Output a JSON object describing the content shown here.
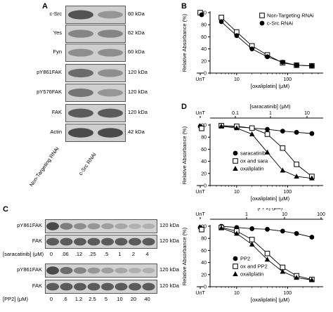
{
  "panels": {
    "A": "A",
    "B": "B",
    "C": "C",
    "D": "D"
  },
  "panelA": {
    "rows": [
      {
        "protein": "c-Src",
        "size": "60 kDa"
      },
      {
        "protein": "Yes",
        "size": "62 kDa"
      },
      {
        "protein": "Fyn",
        "size": "60 kDa"
      },
      {
        "protein": "pY861FAK",
        "size": "120 kDa"
      },
      {
        "protein": "pY576FAK",
        "size": "120 kDa"
      },
      {
        "protein": "FAK",
        "size": "120 kDa"
      },
      {
        "protein": "Actin",
        "size": "42 kDa"
      }
    ],
    "lanes": [
      "Non-Targeting RNAi",
      "c-Src RNAi"
    ]
  },
  "panelC": {
    "group1": {
      "rows": [
        {
          "protein": "pY861FAK",
          "size": "120 kDa"
        },
        {
          "protein": "FAK",
          "size": "120 kDa"
        }
      ],
      "dose_label": "[saracatinib] (μM)",
      "doses": [
        "0",
        ".06",
        ".12",
        ".25",
        ".5",
        "1",
        "2",
        "4"
      ]
    },
    "group2": {
      "rows": [
        {
          "protein": "pY861FAK",
          "size": "120 kDa"
        },
        {
          "protein": "FAK",
          "size": "120 kDa"
        }
      ],
      "dose_label": "[PP2] (μM)",
      "doses": [
        "0",
        ".6",
        "1.2",
        "2.5",
        "5",
        "10",
        "20",
        "40"
      ]
    }
  },
  "chart_data": [
    {
      "panel": "B",
      "type": "scatter",
      "ylabel": "Relative Absorbance (%)",
      "xlabel": "[oxaliplatin] (μM)",
      "ylim": [
        0,
        100
      ],
      "yticks": [
        "0",
        "20",
        "40",
        "60",
        "80",
        "100"
      ],
      "xticks": [
        "UnT",
        "10",
        "100"
      ],
      "xscale": "log",
      "legend_position": "top-right",
      "series": [
        {
          "name": "Non-Targeting RNAi",
          "marker": "open-square",
          "x": [
            5,
            10,
            20,
            40,
            80,
            150,
            300
          ],
          "y": [
            92,
            68,
            45,
            30,
            17,
            13,
            12
          ]
        },
        {
          "name": "c-Src RNAi",
          "marker": "filled-circle",
          "x": [
            5,
            10,
            20,
            40,
            80,
            150,
            300
          ],
          "y": [
            85,
            62,
            40,
            27,
            18,
            13,
            12
          ]
        }
      ],
      "untreated": {
        "y": 100
      }
    },
    {
      "panel": "D-top",
      "type": "scatter",
      "ylabel": "Relative Absorbance (%)",
      "xlabel": "[oxaliplatin] (μM)",
      "top_xlabel": "[saracatinib] (μM)",
      "ylim": [
        0,
        100
      ],
      "yticks": [
        "0",
        "20",
        "40",
        "60",
        "80",
        "100"
      ],
      "xticks": [
        "UnT",
        "10",
        "100"
      ],
      "top_xticks": [
        "UnT",
        "0.1",
        "1",
        "10"
      ],
      "legend_position": "bottom-left",
      "series": [
        {
          "name": "saracatinib",
          "marker": "filled-circle",
          "x": [
            5,
            10,
            20,
            40,
            80,
            150,
            300
          ],
          "y": [
            99,
            97,
            95,
            93,
            90,
            88,
            86
          ]
        },
        {
          "name": "ox and sara",
          "marker": "open-square",
          "x": [
            5,
            10,
            20,
            40,
            80,
            150,
            300
          ],
          "y": [
            99,
            98,
            95,
            85,
            62,
            35,
            15
          ]
        },
        {
          "name": "oxaliplatin",
          "marker": "filled-triangle",
          "x": [
            5,
            10,
            20,
            40,
            80,
            150,
            300
          ],
          "y": [
            98,
            95,
            85,
            55,
            25,
            15,
            12
          ]
        }
      ],
      "untreated": {
        "y": 98
      }
    },
    {
      "panel": "D-bottom",
      "type": "scatter",
      "ylabel": "Relative Absorbance (%)",
      "xlabel": "[oxaliplatin] (μM)",
      "top_xlabel": "[PP2] (μM)",
      "ylim": [
        0,
        100
      ],
      "yticks": [
        "0",
        "20",
        "40",
        "60",
        "80",
        "100"
      ],
      "xticks": [
        "UnT",
        "10",
        "100"
      ],
      "top_xticks": [
        "UnT",
        "1",
        "10",
        "100"
      ],
      "legend_position": "bottom-left",
      "series": [
        {
          "name": "PP2",
          "marker": "filled-circle",
          "x": [
            5,
            10,
            20,
            40,
            80,
            150,
            300
          ],
          "y": [
            100,
            98,
            96,
            95,
            92,
            88,
            82
          ]
        },
        {
          "name": "ox and PP2",
          "marker": "open-square",
          "x": [
            5,
            10,
            20,
            40,
            80,
            150,
            300
          ],
          "y": [
            98,
            92,
            78,
            55,
            32,
            18,
            12
          ]
        },
        {
          "name": "oxaliplatin",
          "marker": "filled-triangle",
          "x": [
            5,
            10,
            20,
            40,
            80,
            150,
            300
          ],
          "y": [
            97,
            88,
            70,
            45,
            25,
            15,
            11
          ]
        }
      ],
      "untreated": {
        "y": 98
      }
    }
  ]
}
